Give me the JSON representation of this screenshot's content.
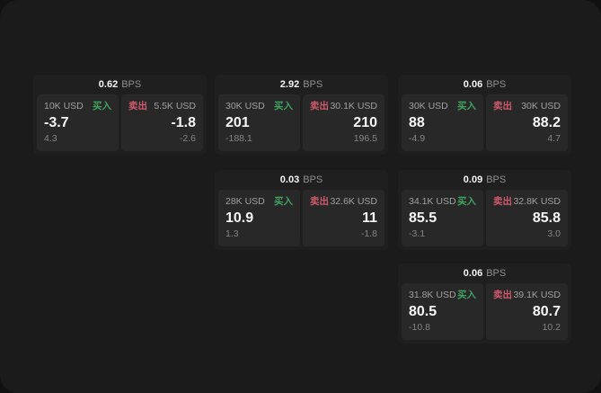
{
  "page": {
    "background_outer": "#111111",
    "background": "#1b1b1b"
  },
  "labels": {
    "bps_unit": "BPS",
    "buy": "买入",
    "sell": "卖出"
  },
  "colors": {
    "buy_green": "#3fa35f",
    "sell_red": "#cf5a6d",
    "card_bg": "#1f1f1f",
    "tile_bg": "#282828"
  },
  "cards": [
    {
      "bps": "0.62",
      "buy": {
        "notional": "10K USD",
        "price": "-3.7",
        "change": "4.3"
      },
      "sell": {
        "notional": "5.5K USD",
        "price": "-1.8",
        "change": "-2.6"
      }
    },
    {
      "bps": "2.92",
      "buy": {
        "notional": "30K USD",
        "price": "201",
        "change": "-188.1"
      },
      "sell": {
        "notional": "30.1K USD",
        "price": "210",
        "change": "196.5"
      }
    },
    {
      "bps": "0.06",
      "buy": {
        "notional": "30K USD",
        "price": "88",
        "change": "-4.9"
      },
      "sell": {
        "notional": "30K USD",
        "price": "88.2",
        "change": "4.7"
      }
    },
    {
      "bps": "0.03",
      "buy": {
        "notional": "28K USD",
        "price": "10.9",
        "change": "1.3"
      },
      "sell": {
        "notional": "32.6K USD",
        "price": "11",
        "change": "-1.8"
      }
    },
    {
      "bps": "0.09",
      "buy": {
        "notional": "34.1K USD",
        "price": "85.5",
        "change": "-3.1"
      },
      "sell": {
        "notional": "32.8K USD",
        "price": "85.8",
        "change": "3.0"
      }
    },
    {
      "bps": "0.06",
      "buy": {
        "notional": "31.8K USD",
        "price": "80.5",
        "change": "-10.8"
      },
      "sell": {
        "notional": "39.1K USD",
        "price": "80.7",
        "change": "10.2"
      }
    }
  ]
}
